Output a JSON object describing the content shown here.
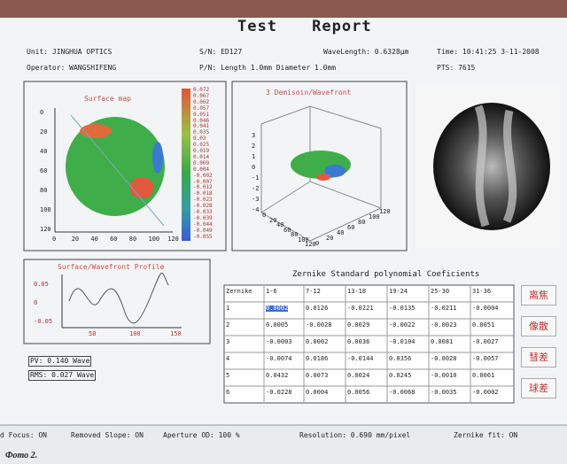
{
  "title": "Test Report",
  "info": {
    "unit": "Unit: JINGHUA OPTICS",
    "sn": "S/N: ED127",
    "wavelength": "WaveLength: 0.6328μm",
    "time": "Time: 10:41:25 3-11-2008",
    "operator": "Operator: WANGSHIFENG",
    "pn": "P/N: Length 1.0mm  Diameter 1.0mm",
    "pts": "PTS: 7615"
  },
  "surface_map": {
    "title": "Surface map",
    "xticks": [
      "0",
      "20",
      "40",
      "60",
      "80",
      "100",
      "120"
    ],
    "yticks": [
      "0",
      "20",
      "40",
      "60",
      "80",
      "100",
      "120"
    ],
    "colorbar": [
      "0.072",
      "0.067",
      "0.062",
      "0.057",
      "0.051",
      "0.046",
      "0.041",
      "0.035",
      "0.03",
      "0.025",
      "0.019",
      "0.014",
      "0.009",
      "0.004",
      "-0.002",
      "-0.007",
      "-0.012",
      "-0.018",
      "-0.023",
      "-0.028",
      "-0.033",
      "-0.039",
      "-0.044",
      "-0.049",
      "-0.055"
    ]
  },
  "wavefront_3d": {
    "title": "3 Demisoin/Wavefront",
    "zticks": [
      "3",
      "2",
      "1",
      "0",
      "-1",
      "-2",
      "-3",
      "-4"
    ],
    "xticks": [
      "0",
      "20",
      "40",
      "60",
      "80",
      "100",
      "120"
    ],
    "yticks": [
      "0",
      "20",
      "40",
      "60",
      "80",
      "100",
      "120"
    ]
  },
  "profile": {
    "title": "Surface/Wavefront Profile",
    "yticks": [
      "0.05",
      "0",
      "-0.05"
    ],
    "xticks": [
      "50",
      "100",
      "150"
    ]
  },
  "pv": "PV: 0.140 Wave",
  "rms": "RMS: 0.027 Wave",
  "zernike": {
    "title": "Zernike Standard polynomial Coeficients",
    "header": [
      "Zernike",
      "1-6",
      "7-12",
      "13-18",
      "19-24",
      "25-30",
      "31-36"
    ],
    "rows": [
      [
        "1",
        "0.0002",
        "0.0126",
        "-0.0221",
        "-0.0135",
        "-0.0211",
        "-0.0004"
      ],
      [
        "2",
        "0.0005",
        "-0.0028",
        "0.0029",
        "-0.0022",
        "-0.0023",
        "0.0051"
      ],
      [
        "3",
        "-0.0003",
        "0.0002",
        "0.0036",
        "-0.0104",
        "0.0081",
        "-0.0027"
      ],
      [
        "4",
        "-0.0074",
        "0.0186",
        "-0.0144",
        "0.0356",
        "-0.0028",
        "-0.0057"
      ],
      [
        "5",
        "0.0432",
        "0.0073",
        "0.0024",
        "0.0245",
        "-0.0010",
        "0.0061"
      ],
      [
        "6",
        "-0.0228",
        "0.0004",
        "0.0056",
        "-0.0068",
        "-0.0035",
        "-0.0002"
      ]
    ]
  },
  "buttons": [
    "离焦",
    "像散",
    "彗差",
    "球差"
  ],
  "status": [
    "d Focus: ON",
    "Removed Slope: ON",
    "Aperture OD: 100 %",
    "Resolution: 0.690 mm/pixel",
    "Zernike fit: ON"
  ],
  "caption": "Фото 2."
}
